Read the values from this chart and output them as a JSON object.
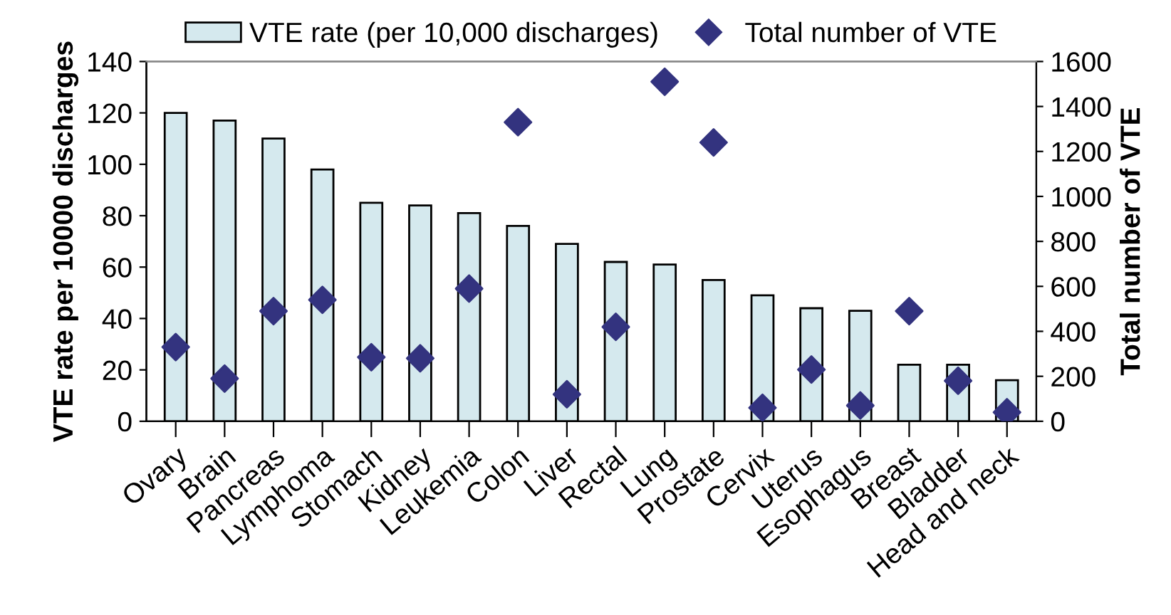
{
  "chart_data": {
    "type": "bar",
    "ylabel": "VTE rate per 10000 discharges",
    "y2label": "Total number of VTE",
    "categories": [
      "Ovary",
      "Brain",
      "Pancreas",
      "Lymphoma",
      "Stomach",
      "Kidney",
      "Leukemia",
      "Colon",
      "Liver",
      "Rectal",
      "Lung",
      "Prostate",
      "Cervix",
      "Uterus",
      "Esophagus",
      "Breast",
      "Bladder",
      "Head and neck"
    ],
    "series": [
      {
        "name": "VTE rate (per 10,000 discharges)",
        "color": "#d5e9ee",
        "values": [
          120,
          117,
          110,
          98,
          85,
          84,
          81,
          76,
          69,
          62,
          61,
          55,
          49,
          44,
          43,
          22,
          22,
          16
        ]
      },
      {
        "name": "Total number of VTE",
        "type": "scatter",
        "axis": "y2",
        "marker": "diamond",
        "color": "#33337f",
        "values": [
          330,
          190,
          490,
          540,
          285,
          280,
          590,
          1330,
          120,
          420,
          1510,
          1240,
          60,
          230,
          70,
          490,
          180,
          40
        ]
      }
    ],
    "ylim": [
      0,
      140
    ],
    "yticks": [
      0,
      20,
      40,
      60,
      80,
      100,
      120,
      140
    ],
    "y2lim": [
      0,
      1600
    ],
    "y2ticks": [
      0,
      200,
      400,
      600,
      800,
      1000,
      1200,
      1400,
      1600
    ],
    "grid": false,
    "legend": "top"
  }
}
